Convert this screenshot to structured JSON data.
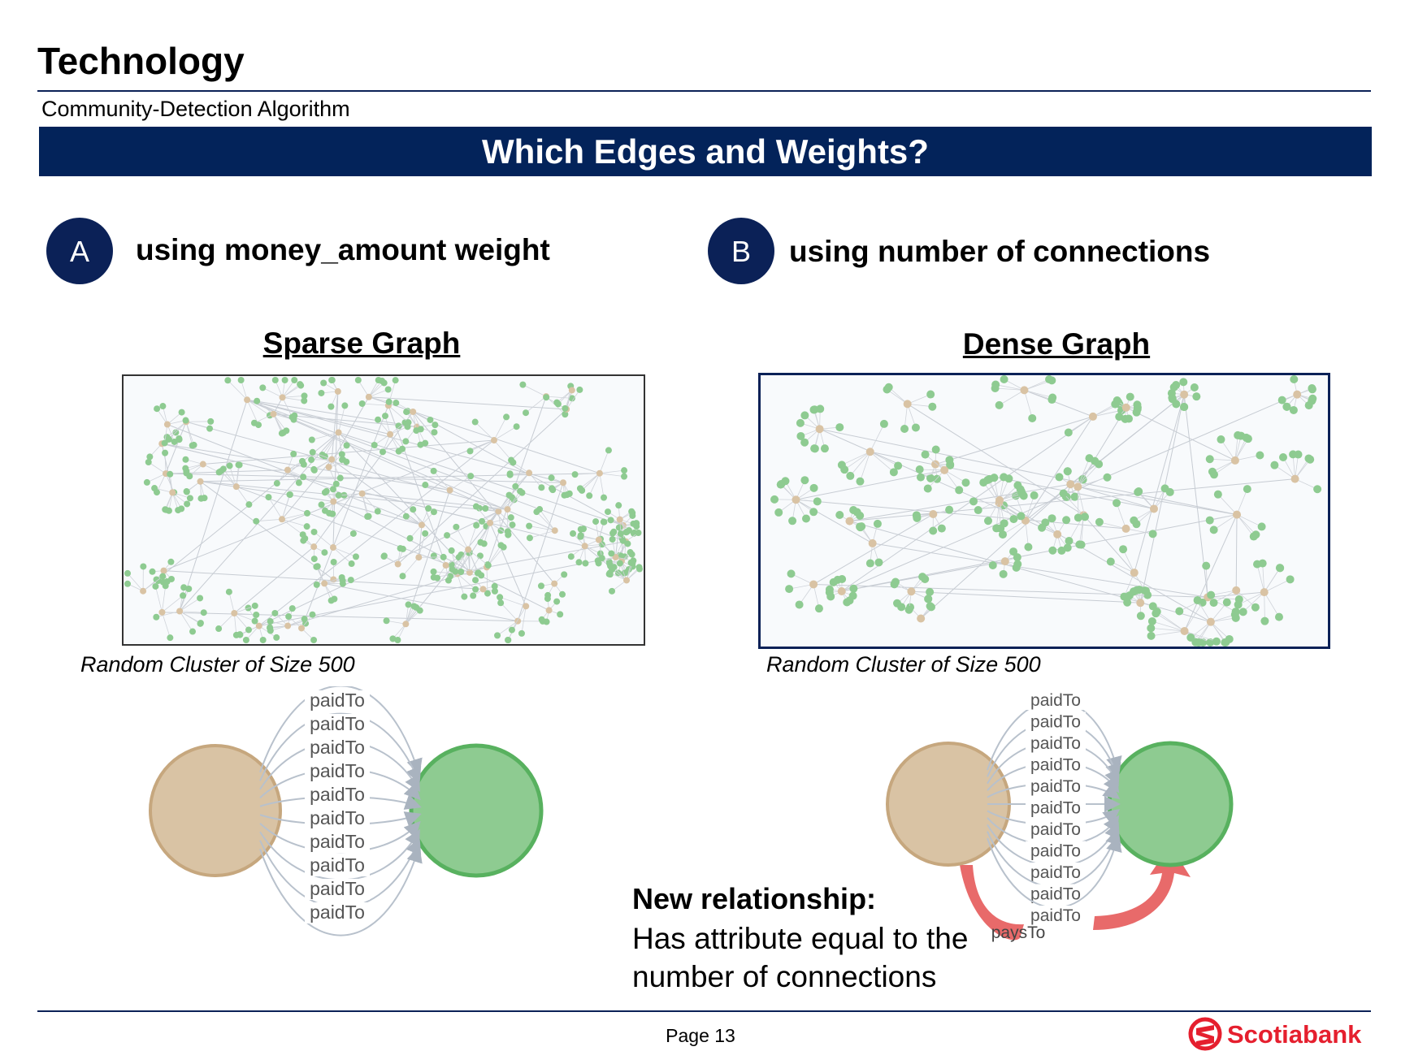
{
  "header": {
    "title": "Technology",
    "subtitle": "Community-Detection Algorithm",
    "banner": "Which Edges and Weights?"
  },
  "options": [
    {
      "badge": "A",
      "label": "using money_amount weight"
    },
    {
      "badge": "B",
      "label": "using number of connections"
    }
  ],
  "graphs": [
    {
      "title": "Sparse Graph",
      "caption": "Random Cluster of Size 500"
    },
    {
      "title": "Dense Graph",
      "caption": "Random Cluster of Size 500"
    }
  ],
  "edge_labels": {
    "paid": "paidTo",
    "pays": "paysTo"
  },
  "new_relationship": {
    "heading": "New relationship:",
    "text": "Has attribute equal to the number of connections"
  },
  "footer": {
    "page": "Page 13",
    "brand": "Scotiabank"
  },
  "colors": {
    "navy": "#03235a",
    "tan_node": "#d9c3a4",
    "green_node": "#8ecb91",
    "green_stroke": "#58b15f",
    "tan_stroke": "#c6a77e",
    "pays_arrow": "#e86a6a",
    "brand_red": "#e51f2e"
  },
  "icons": [
    "scotiabank-logo-icon"
  ]
}
